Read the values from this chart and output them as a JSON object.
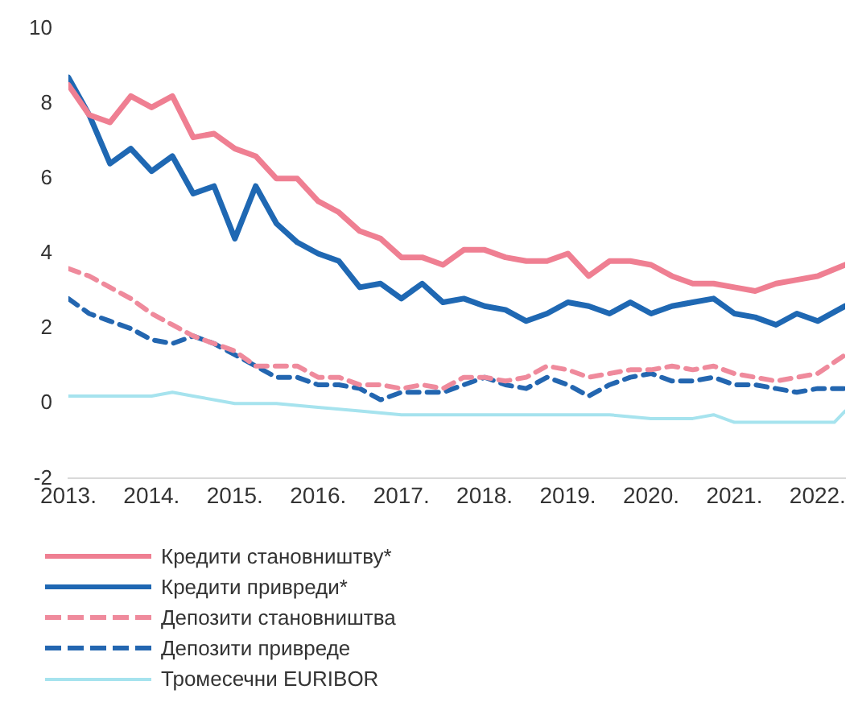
{
  "chart_data": {
    "type": "line",
    "x": [
      2013,
      2013.25,
      2013.5,
      2013.75,
      2014,
      2014.25,
      2014.5,
      2014.75,
      2015,
      2015.25,
      2015.5,
      2015.75,
      2016,
      2016.25,
      2016.5,
      2016.75,
      2017,
      2017.25,
      2017.5,
      2017.75,
      2018,
      2018.25,
      2018.5,
      2018.75,
      2019,
      2019.25,
      2019.5,
      2019.75,
      2020,
      2020.25,
      2020.5,
      2020.75,
      2021,
      2021.25,
      2021.5,
      2021.75,
      2022,
      2022.33
    ],
    "xlim": [
      2013,
      2022.33
    ],
    "xticks": [
      {
        "value": 2013,
        "label": "2013."
      },
      {
        "value": 2014,
        "label": "2014."
      },
      {
        "value": 2015,
        "label": "2015."
      },
      {
        "value": 2016,
        "label": "2016."
      },
      {
        "value": 2017,
        "label": "2017."
      },
      {
        "value": 2018,
        "label": "2018."
      },
      {
        "value": 2019,
        "label": "2019."
      },
      {
        "value": 2020,
        "label": "2020."
      },
      {
        "value": 2021,
        "label": "2021."
      },
      {
        "value": 2022,
        "label": "2022."
      }
    ],
    "ylim": [
      -2,
      10
    ],
    "yticks": [
      -2,
      0,
      2,
      4,
      6,
      8,
      10
    ],
    "grid": false,
    "legend": "bottom left",
    "marker": "none",
    "series": [
      {
        "name": "Кредити становништву*",
        "color": "#ef7f92",
        "line_style": "solid",
        "values": [
          8.5,
          7.7,
          7.5,
          8.2,
          7.9,
          8.2,
          7.1,
          7.2,
          6.8,
          6.6,
          6.0,
          6.0,
          5.4,
          5.1,
          4.6,
          4.4,
          3.9,
          3.9,
          3.7,
          4.1,
          4.1,
          3.9,
          3.8,
          3.8,
          4.0,
          3.4,
          3.8,
          3.8,
          3.7,
          3.4,
          3.2,
          3.2,
          3.1,
          3.0,
          3.2,
          3.3,
          3.4,
          3.7
        ]
      },
      {
        "name": "Кредити привреди*",
        "color": "#1f68b3",
        "line_style": "solid",
        "values": [
          8.7,
          7.7,
          6.4,
          6.8,
          6.2,
          6.6,
          5.6,
          5.8,
          4.4,
          5.8,
          4.8,
          4.3,
          4.0,
          3.8,
          3.1,
          3.2,
          2.8,
          3.2,
          2.7,
          2.8,
          2.6,
          2.5,
          2.2,
          2.4,
          2.7,
          2.6,
          2.4,
          2.7,
          2.4,
          2.6,
          2.7,
          2.8,
          2.4,
          2.3,
          2.1,
          2.4,
          2.2,
          2.6
        ]
      },
      {
        "name": "Депозити становништва",
        "color": "#ef8a9c",
        "line_style": "dashed",
        "values": [
          3.6,
          3.4,
          3.1,
          2.8,
          2.4,
          2.1,
          1.8,
          1.6,
          1.4,
          1.0,
          1.0,
          1.0,
          0.7,
          0.7,
          0.5,
          0.5,
          0.4,
          0.5,
          0.4,
          0.7,
          0.7,
          0.6,
          0.7,
          1.0,
          0.9,
          0.7,
          0.8,
          0.9,
          0.9,
          1.0,
          0.9,
          1.0,
          0.8,
          0.7,
          0.6,
          0.7,
          0.8,
          1.3
        ]
      },
      {
        "name": "Депозити привреде",
        "color": "#2366b0",
        "line_style": "dashed",
        "values": [
          2.8,
          2.4,
          2.2,
          2.0,
          1.7,
          1.6,
          1.8,
          1.6,
          1.3,
          1.0,
          0.7,
          0.7,
          0.5,
          0.5,
          0.4,
          0.1,
          0.3,
          0.3,
          0.3,
          0.5,
          0.7,
          0.5,
          0.4,
          0.7,
          0.5,
          0.2,
          0.5,
          0.7,
          0.8,
          0.6,
          0.6,
          0.7,
          0.5,
          0.5,
          0.4,
          0.3,
          0.4,
          0.4
        ]
      },
      {
        "name": "Тромесечни EURIBOR",
        "color": "#a6e3ee",
        "line_style": "solid",
        "x": [
          2013,
          2013.5,
          2014,
          2014.25,
          2014.5,
          2015,
          2015.5,
          2016,
          2016.5,
          2017,
          2018,
          2019,
          2019.5,
          2020,
          2020.5,
          2020.75,
          2021,
          2021.5,
          2022,
          2022.2,
          2022.33
        ],
        "values": [
          0.2,
          0.2,
          0.2,
          0.3,
          0.2,
          0.0,
          0.0,
          -0.1,
          -0.2,
          -0.3,
          -0.3,
          -0.3,
          -0.3,
          -0.4,
          -0.4,
          -0.3,
          -0.5,
          -0.5,
          -0.5,
          -0.5,
          -0.2
        ]
      }
    ]
  }
}
